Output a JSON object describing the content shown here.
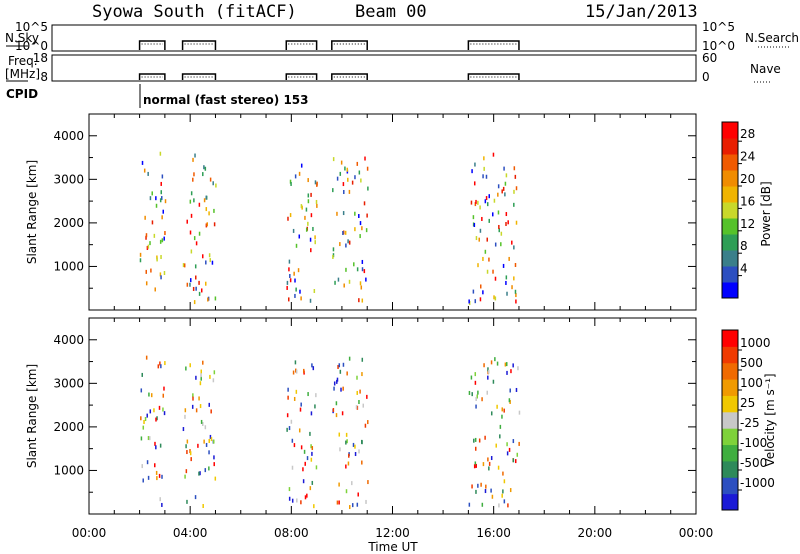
{
  "header": {
    "station": "Syowa South (fitACF)",
    "beam": "Beam 00",
    "date": "15/Jan/2013"
  },
  "panels": {
    "nsky": {
      "label": "N.Sky",
      "ticks": [
        "10^5",
        "10^0"
      ],
      "right_ticks": [
        "10^5",
        "10^0"
      ],
      "right_label": "N.Search"
    },
    "freq": {
      "label_line1": "Freq.",
      "label_line2": "[MHz]",
      "ticks": [
        "18",
        "8"
      ],
      "right_ticks": [
        "60",
        "0"
      ],
      "right_label": "Nave"
    },
    "cpid": {
      "label": "CPID",
      "mode_text": "normal (fast stereo) 153"
    }
  },
  "colors": {
    "power": [
      "#0000ff",
      "#2c4fc0",
      "#3a7f8a",
      "#2e9e55",
      "#55c22a",
      "#c8d82a",
      "#f0b400",
      "#f08c00",
      "#f05a00",
      "#e81e00",
      "#ff0000"
    ],
    "velocity": [
      "#1a1ad6",
      "#2c4fc0",
      "#2e8a5a",
      "#3fae3f",
      "#7ed23a",
      "#c8c8c8",
      "#f0c800",
      "#f09a00",
      "#f06a00",
      "#f03a00",
      "#ff0000"
    ]
  },
  "chart_data": [
    {
      "type": "scatter",
      "name": "power",
      "ylabel": "Slant Range [km]",
      "ylim": [
        0,
        4500
      ],
      "yticks": [
        "1000",
        "2000",
        "3000",
        "4000"
      ],
      "xlim": [
        0,
        24
      ],
      "colorbar": {
        "label": "Power [dB]",
        "ticks": [
          "4",
          "8",
          "12",
          "16",
          "20",
          "24",
          "28"
        ]
      },
      "scan_windows_hours": [
        [
          2.0,
          3.0
        ],
        [
          3.7,
          5.0
        ],
        [
          7.8,
          9.0
        ],
        [
          9.6,
          11.0
        ],
        [
          15.0,
          17.0
        ]
      ]
    },
    {
      "type": "scatter",
      "name": "velocity",
      "ylabel": "Slant Range [km]",
      "ylim": [
        0,
        4500
      ],
      "yticks": [
        "1000",
        "2000",
        "3000",
        "4000"
      ],
      "xlabel": "Time UT",
      "xlim": [
        0,
        24
      ],
      "xticks": [
        "00:00",
        "04:00",
        "08:00",
        "12:00",
        "16:00",
        "20:00",
        "00:00"
      ],
      "colorbar": {
        "label": "Velocity [m s⁻¹]",
        "ticks": [
          "1000",
          "500",
          "100",
          "25",
          "-25",
          "-100",
          "-500",
          "-1000"
        ]
      },
      "scan_windows_hours": [
        [
          2.0,
          3.0
        ],
        [
          3.7,
          5.0
        ],
        [
          7.8,
          9.0
        ],
        [
          9.6,
          11.0
        ],
        [
          15.0,
          17.0
        ]
      ]
    }
  ]
}
